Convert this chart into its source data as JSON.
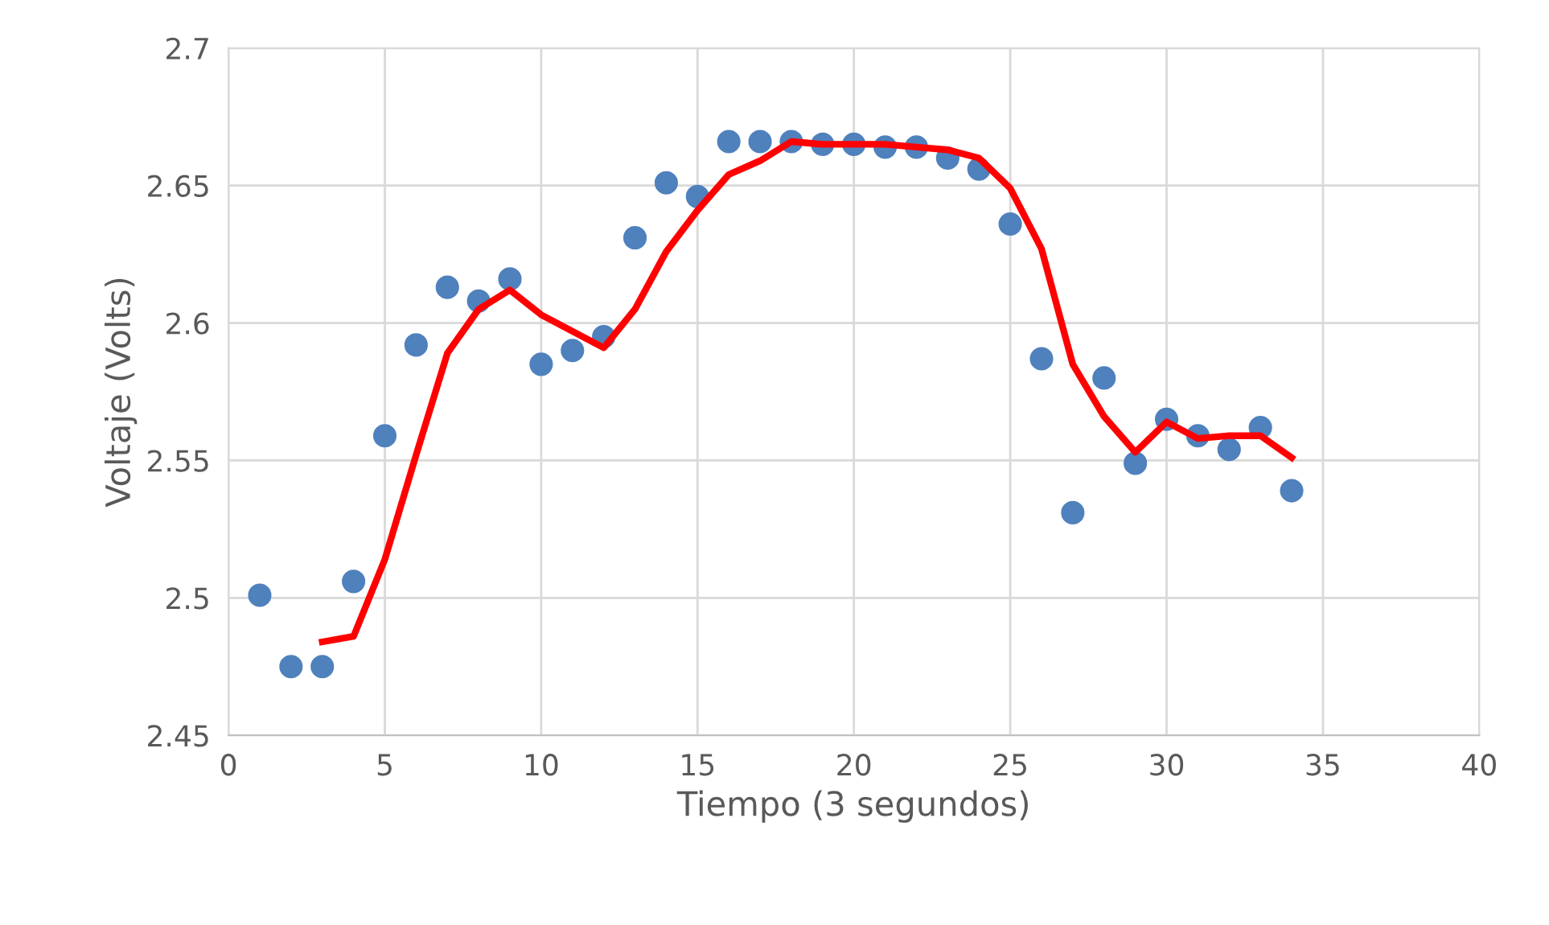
{
  "chart_data": {
    "type": "scatter",
    "xlabel": "Tiempo (3 segundos)",
    "ylabel": "Voltaje (Volts)",
    "xlim": [
      0,
      40
    ],
    "xticks": [
      0,
      5,
      10,
      15,
      20,
      25,
      30,
      35,
      40
    ],
    "ylim": [
      2.45,
      2.7
    ],
    "yticks": [
      {
        "value": 2.45,
        "label": "2.45"
      },
      {
        "value": 2.5,
        "label": "2.5"
      },
      {
        "value": 2.55,
        "label": "2.55"
      },
      {
        "value": 2.6,
        "label": "2.6"
      },
      {
        "value": 2.65,
        "label": "2.65"
      },
      {
        "value": 2.7,
        "label": "2.7"
      }
    ],
    "grid": true,
    "series": [
      {
        "color": "#4f81bd",
        "marker": "circle",
        "x": [
          1,
          2,
          3,
          4,
          5,
          6,
          7,
          8,
          9,
          10,
          11,
          12,
          13,
          14,
          15,
          16,
          17,
          18,
          19,
          20,
          21,
          22,
          23,
          24,
          25,
          26,
          27,
          28,
          29,
          30,
          31,
          32,
          33,
          34
        ],
        "values": [
          2.501,
          2.475,
          2.475,
          2.506,
          2.559,
          2.592,
          2.613,
          2.608,
          2.616,
          2.585,
          2.59,
          2.595,
          2.631,
          2.651,
          2.646,
          2.666,
          2.666,
          2.666,
          2.665,
          2.665,
          2.664,
          2.664,
          2.66,
          2.656,
          2.636,
          2.587,
          2.531,
          2.58,
          2.549,
          2.565,
          2.559,
          2.554,
          2.562,
          2.539
        ]
      },
      {
        "type": "line",
        "color": "#ff0000",
        "line_style": "solid",
        "x": [
          3,
          4,
          5,
          6,
          7,
          8,
          9,
          10,
          11,
          12,
          13,
          14,
          15,
          16,
          17,
          18,
          19,
          20,
          21,
          22,
          23,
          24,
          25,
          26,
          27,
          28,
          29,
          30,
          31,
          32,
          33,
          34
        ],
        "values": [
          2.484,
          2.486,
          2.514,
          2.552,
          2.589,
          2.605,
          2.612,
          2.603,
          2.597,
          2.591,
          2.605,
          2.626,
          2.641,
          2.654,
          2.659,
          2.666,
          2.665,
          2.665,
          2.665,
          2.664,
          2.663,
          2.66,
          2.649,
          2.627,
          2.585,
          2.566,
          2.553,
          2.564,
          2.558,
          2.559,
          2.559,
          2.551
        ]
      }
    ]
  }
}
